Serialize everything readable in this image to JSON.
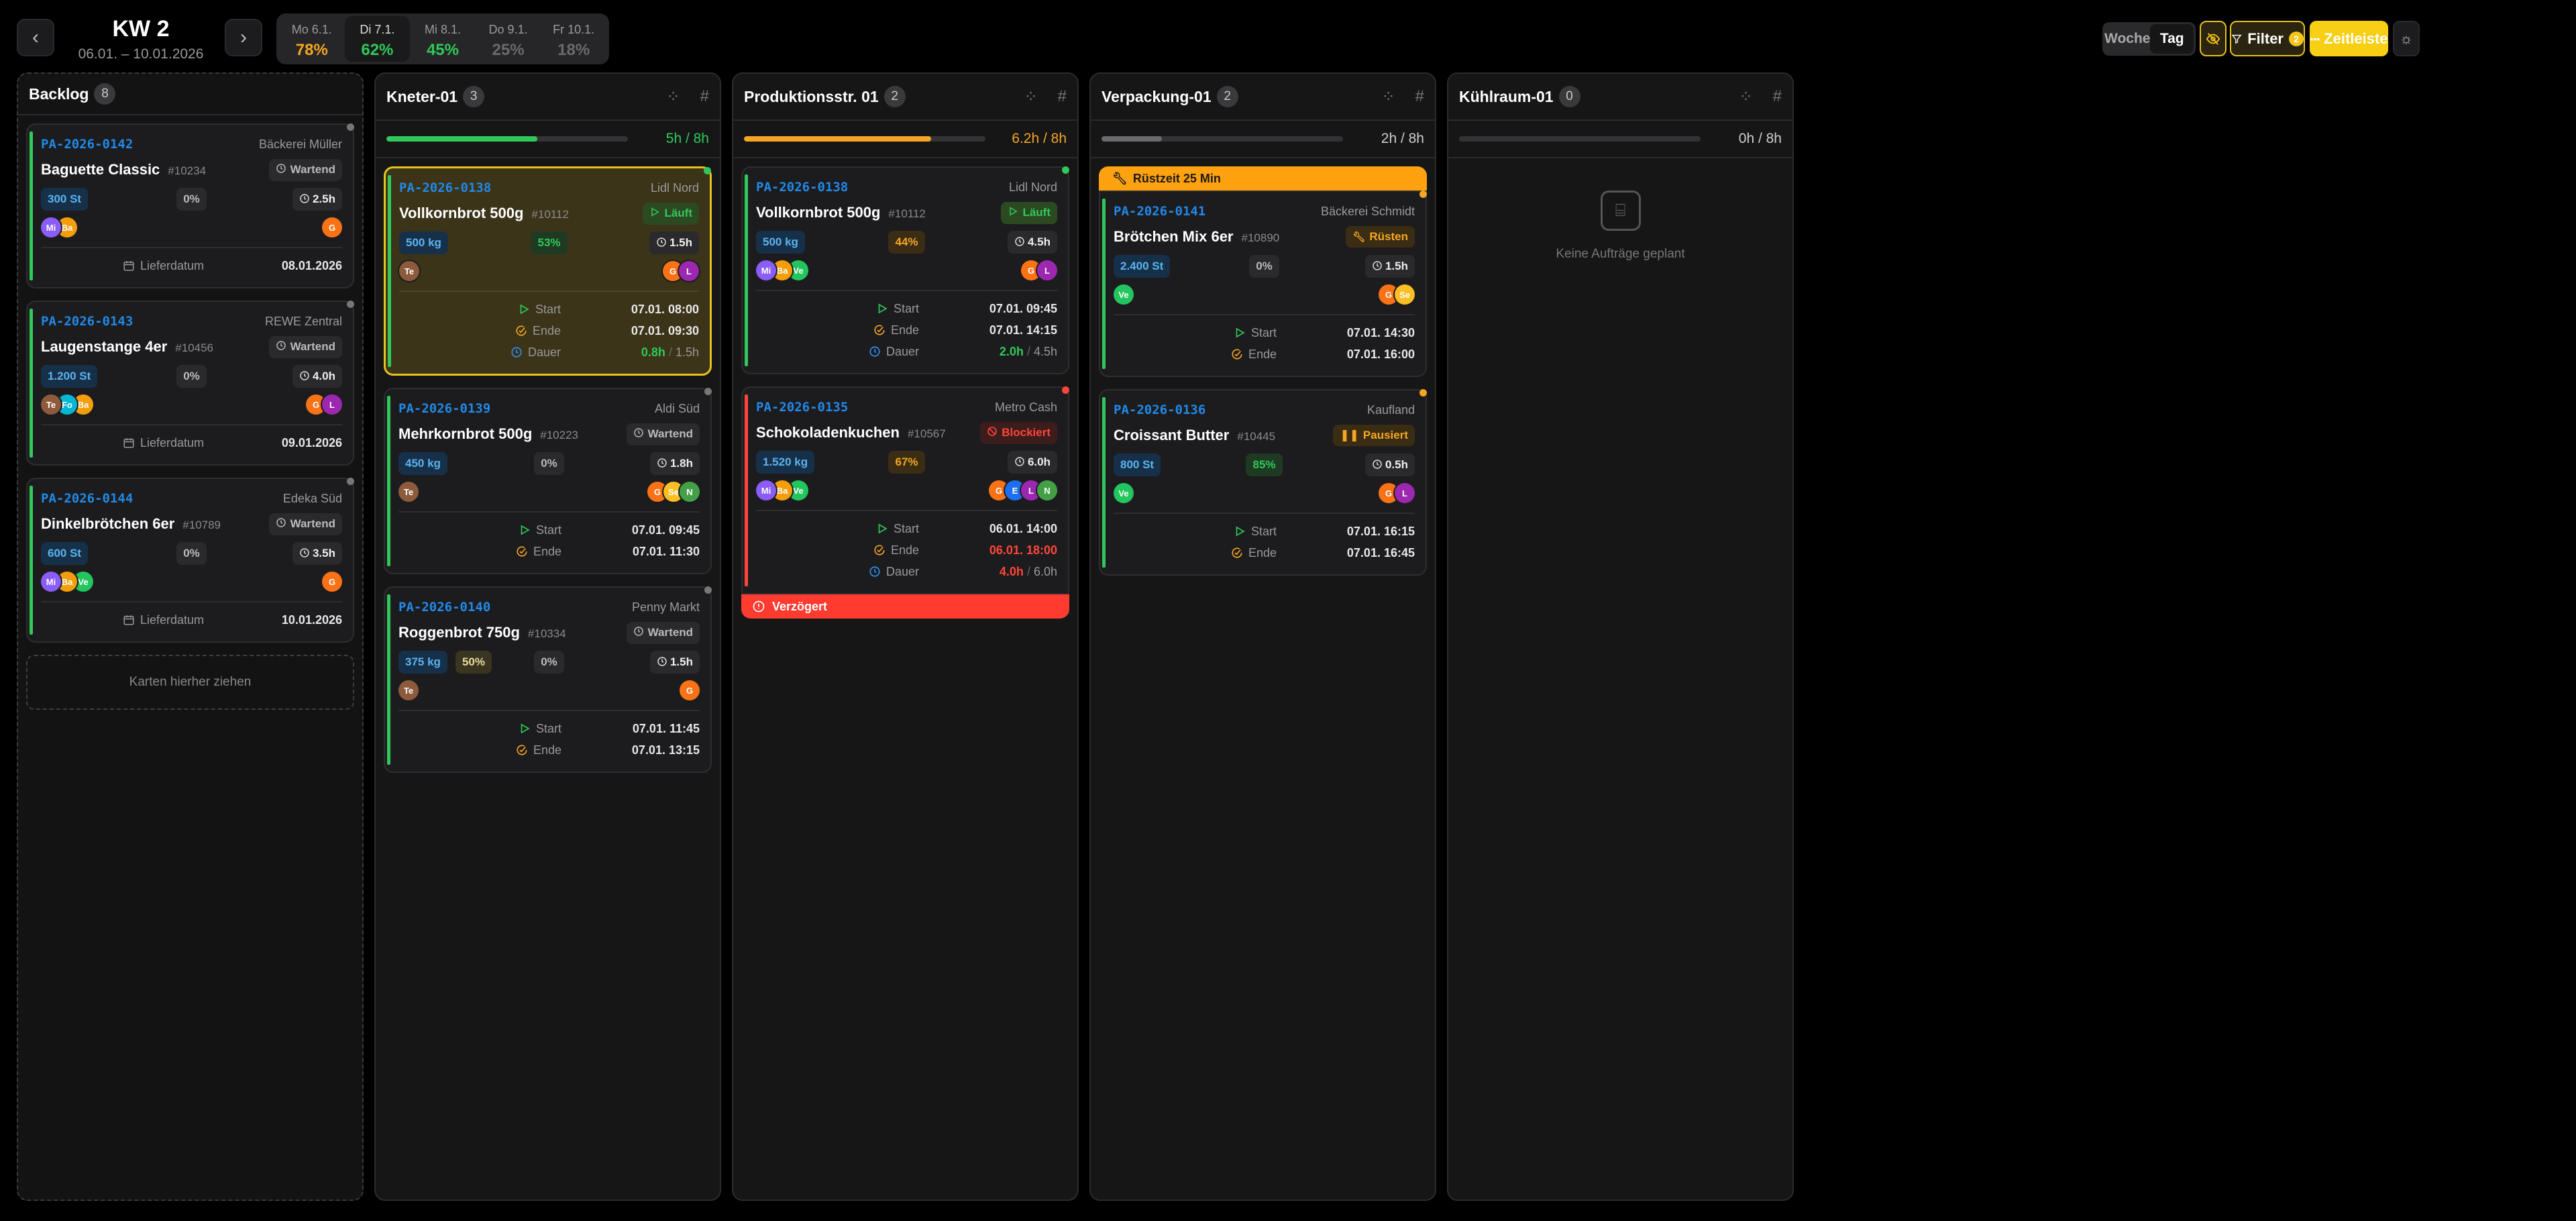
{
  "header": {
    "week_label": "KW 2",
    "date_range": "06.01. – 10.01.2026",
    "prev_icon": "chevron-left-icon",
    "next_icon": "chevron-right-icon",
    "days": [
      {
        "label": "Mo 6.1.",
        "load": "78%",
        "color": "#f5a623",
        "active": false
      },
      {
        "label": "Di 7.1.",
        "load": "62%",
        "color": "#30c85a",
        "active": true
      },
      {
        "label": "Mi 8.1.",
        "load": "45%",
        "color": "#30c85a",
        "active": false
      },
      {
        "label": "Do 9.1.",
        "load": "25%",
        "color": "#6a6a6a",
        "active": false
      },
      {
        "label": "Fr 10.1.",
        "load": "18%",
        "color": "#6a6a6a",
        "active": false
      }
    ],
    "view_week": "Woche",
    "view_day": "Tag",
    "view_selected": "Tag",
    "hide_icon": "eye-off-icon",
    "filter_label": "Filter",
    "filter_count": "2",
    "timeline_label": "Zeitleiste",
    "theme_icon": "sun-icon"
  },
  "colors": {
    "accent": "#f5c518",
    "green": "#30c85a",
    "orange": "#f5a623",
    "red": "#ff3b30",
    "id_blue": "#2189e8"
  },
  "columns": [
    {
      "title": "Backlog",
      "count": "8",
      "type": "backlog",
      "drop_label": "Karten hierher ziehen",
      "cards": [
        {
          "id": "PA-2026-0142",
          "customer": "Bäckerei Müller",
          "title": "Baguette Classic",
          "sku": "#10234",
          "status": "Wartend",
          "status_kind": "waiting",
          "qty": "300 St",
          "progress": "0%",
          "progress_kind": "gray",
          "duration": "2.5h",
          "team": [
            "Mi",
            "Ba"
          ],
          "shifts": [
            "G"
          ],
          "footer": [
            {
              "icon": "calendar",
              "label": "Lieferdatum",
              "value": "08.01.2026"
            }
          ]
        },
        {
          "id": "PA-2026-0143",
          "customer": "REWE Zentral",
          "title": "Laugenstange 4er",
          "sku": "#10456",
          "status": "Wartend",
          "status_kind": "waiting",
          "qty": "1.200 St",
          "progress": "0%",
          "progress_kind": "gray",
          "duration": "4.0h",
          "team": [
            "Te",
            "Fo",
            "Ba"
          ],
          "shifts": [
            "G",
            "L"
          ],
          "footer": [
            {
              "icon": "calendar",
              "label": "Lieferdatum",
              "value": "09.01.2026"
            }
          ]
        },
        {
          "id": "PA-2026-0144",
          "customer": "Edeka Süd",
          "title": "Dinkelbrötchen 6er",
          "sku": "#10789",
          "status": "Wartend",
          "status_kind": "waiting",
          "qty": "600 St",
          "progress": "0%",
          "progress_kind": "gray",
          "duration": "3.5h",
          "team": [
            "Mi",
            "Ba",
            "Ve"
          ],
          "shifts": [
            "G"
          ],
          "footer": [
            {
              "icon": "calendar",
              "label": "Lieferdatum",
              "value": "10.01.2026"
            }
          ]
        }
      ]
    },
    {
      "title": "Kneter-01",
      "count": "3",
      "capacity": "5h / 8h",
      "capacity_fraction": 0.625,
      "capacity_color": "#30c85a",
      "cards": [
        {
          "id": "PA-2026-0138",
          "customer": "Lidl Nord",
          "title": "Vollkornbrot 500g",
          "sku": "#10112",
          "status": "Läuft",
          "status_kind": "running",
          "qty": "500 kg",
          "progress": "53%",
          "progress_kind": "green",
          "duration": "1.5h",
          "selected": true,
          "team": [
            "Te"
          ],
          "shifts": [
            "G",
            "L"
          ],
          "footer": [
            {
              "icon": "start",
              "label": "Start",
              "value": "07.01. 08:00"
            },
            {
              "icon": "end",
              "label": "Ende",
              "value": "07.01. 09:30"
            },
            {
              "icon": "clock",
              "label": "Dauer",
              "value": "0.8h",
              "value_color": "#30c85a",
              "total": "1.5h"
            }
          ]
        },
        {
          "id": "PA-2026-0139",
          "customer": "Aldi Süd",
          "title": "Mehrkornbrot 500g",
          "sku": "#10223",
          "status": "Wartend",
          "status_kind": "waiting",
          "qty": "450 kg",
          "progress": "0%",
          "progress_kind": "gray",
          "duration": "1.8h",
          "team": [
            "Te"
          ],
          "shifts": [
            "G",
            "Se",
            "N"
          ],
          "footer": [
            {
              "icon": "start",
              "label": "Start",
              "value": "07.01. 09:45"
            },
            {
              "icon": "end",
              "label": "Ende",
              "value": "07.01. 11:30"
            }
          ]
        },
        {
          "id": "PA-2026-0140",
          "customer": "Penny Markt",
          "title": "Roggenbrot 750g",
          "sku": "#10334",
          "status": "Wartend",
          "status_kind": "waiting",
          "qty": "375 kg",
          "extra": "50%",
          "progress": "0%",
          "progress_kind": "gray",
          "duration": "1.5h",
          "team": [
            "Te"
          ],
          "shifts": [
            "G"
          ],
          "footer": [
            {
              "icon": "start",
              "label": "Start",
              "value": "07.01. 11:45"
            },
            {
              "icon": "end",
              "label": "Ende",
              "value": "07.01. 13:15"
            }
          ]
        }
      ]
    },
    {
      "title": "Produktionsstr. 01",
      "count": "2",
      "capacity": "6.2h / 8h",
      "capacity_fraction": 0.775,
      "capacity_color": "#f5a623",
      "cards": [
        {
          "id": "PA-2026-0138",
          "customer": "Lidl Nord",
          "title": "Vollkornbrot 500g",
          "sku": "#10112",
          "status": "Läuft",
          "status_kind": "running",
          "qty": "500 kg",
          "progress": "44%",
          "progress_kind": "orange",
          "duration": "4.5h",
          "team": [
            "Mi",
            "Ba",
            "Ve"
          ],
          "shifts": [
            "G",
            "L"
          ],
          "footer": [
            {
              "icon": "start",
              "label": "Start",
              "value": "07.01. 09:45"
            },
            {
              "icon": "end",
              "label": "Ende",
              "value": "07.01. 14:15"
            },
            {
              "icon": "clock",
              "label": "Dauer",
              "value": "2.0h",
              "value_color": "#30c85a",
              "total": "4.5h"
            }
          ]
        },
        {
          "id": "PA-2026-0135",
          "customer": "Metro Cash",
          "title": "Schokoladenkuchen",
          "sku": "#10567",
          "status": "Blockiert",
          "status_kind": "blocked",
          "qty": "1.520 kg",
          "progress": "67%",
          "progress_kind": "orange",
          "duration": "6.0h",
          "team": [
            "Mi",
            "Ba",
            "Ve"
          ],
          "shifts": [
            "G",
            "E",
            "L",
            "N"
          ],
          "alert": "Verzögert",
          "footer": [
            {
              "icon": "start",
              "label": "Start",
              "value": "06.01. 14:00"
            },
            {
              "icon": "end",
              "label": "Ende",
              "value": "06.01. 18:00",
              "value_color": "#ff453a"
            },
            {
              "icon": "clock",
              "label": "Dauer",
              "value": "4.0h",
              "value_color": "#ff453a",
              "total": "6.0h"
            }
          ]
        }
      ]
    },
    {
      "title": "Verpackung-01",
      "count": "2",
      "capacity": "2h / 8h",
      "capacity_fraction": 0.25,
      "capacity_color": "#6a6a6d",
      "capacity_text_color": "#cfcfcf",
      "cards": [
        {
          "banner": "Rüstzeit 25 Min",
          "id": "PA-2026-0141",
          "customer": "Bäckerei Schmidt",
          "title": "Brötchen Mix 6er",
          "sku": "#10890",
          "status": "Rüsten",
          "status_kind": "setup",
          "qty": "2.400 St",
          "progress": "0%",
          "progress_kind": "gray",
          "duration": "1.5h",
          "team": [
            "Ve"
          ],
          "shifts": [
            "G",
            "Se"
          ],
          "footer": [
            {
              "icon": "start",
              "label": "Start",
              "value": "07.01. 14:30"
            },
            {
              "icon": "end",
              "label": "Ende",
              "value": "07.01. 16:00"
            }
          ]
        },
        {
          "id": "PA-2026-0136",
          "customer": "Kaufland",
          "title": "Croissant Butter",
          "sku": "#10445",
          "status": "Pausiert",
          "status_kind": "paused",
          "qty": "800 St",
          "progress": "85%",
          "progress_kind": "green",
          "duration": "0.5h",
          "team": [
            "Ve"
          ],
          "shifts": [
            "G",
            "L"
          ],
          "footer": [
            {
              "icon": "start",
              "label": "Start",
              "value": "07.01. 16:15"
            },
            {
              "icon": "end",
              "label": "Ende",
              "value": "07.01. 16:45"
            }
          ]
        }
      ]
    },
    {
      "title": "Kühlraum-01",
      "count": "0",
      "capacity": "0h / 8h",
      "capacity_fraction": 0,
      "capacity_color": "#6a6a6d",
      "capacity_text_color": "#cfcfcf",
      "empty_label": "Keine Aufträge geplant",
      "cards": []
    }
  ],
  "avatar_colors": {
    "Mi": "#8b5cf6",
    "Ba": "#f59e0b",
    "Te": "#8d5a3b",
    "Fo": "#06b6d4",
    "Ve": "#22c55e",
    "G": "#f97316",
    "L": "#9c27b0",
    "E": "#1e6ff0",
    "N": "#43a047",
    "Se": "#fbbf24"
  }
}
